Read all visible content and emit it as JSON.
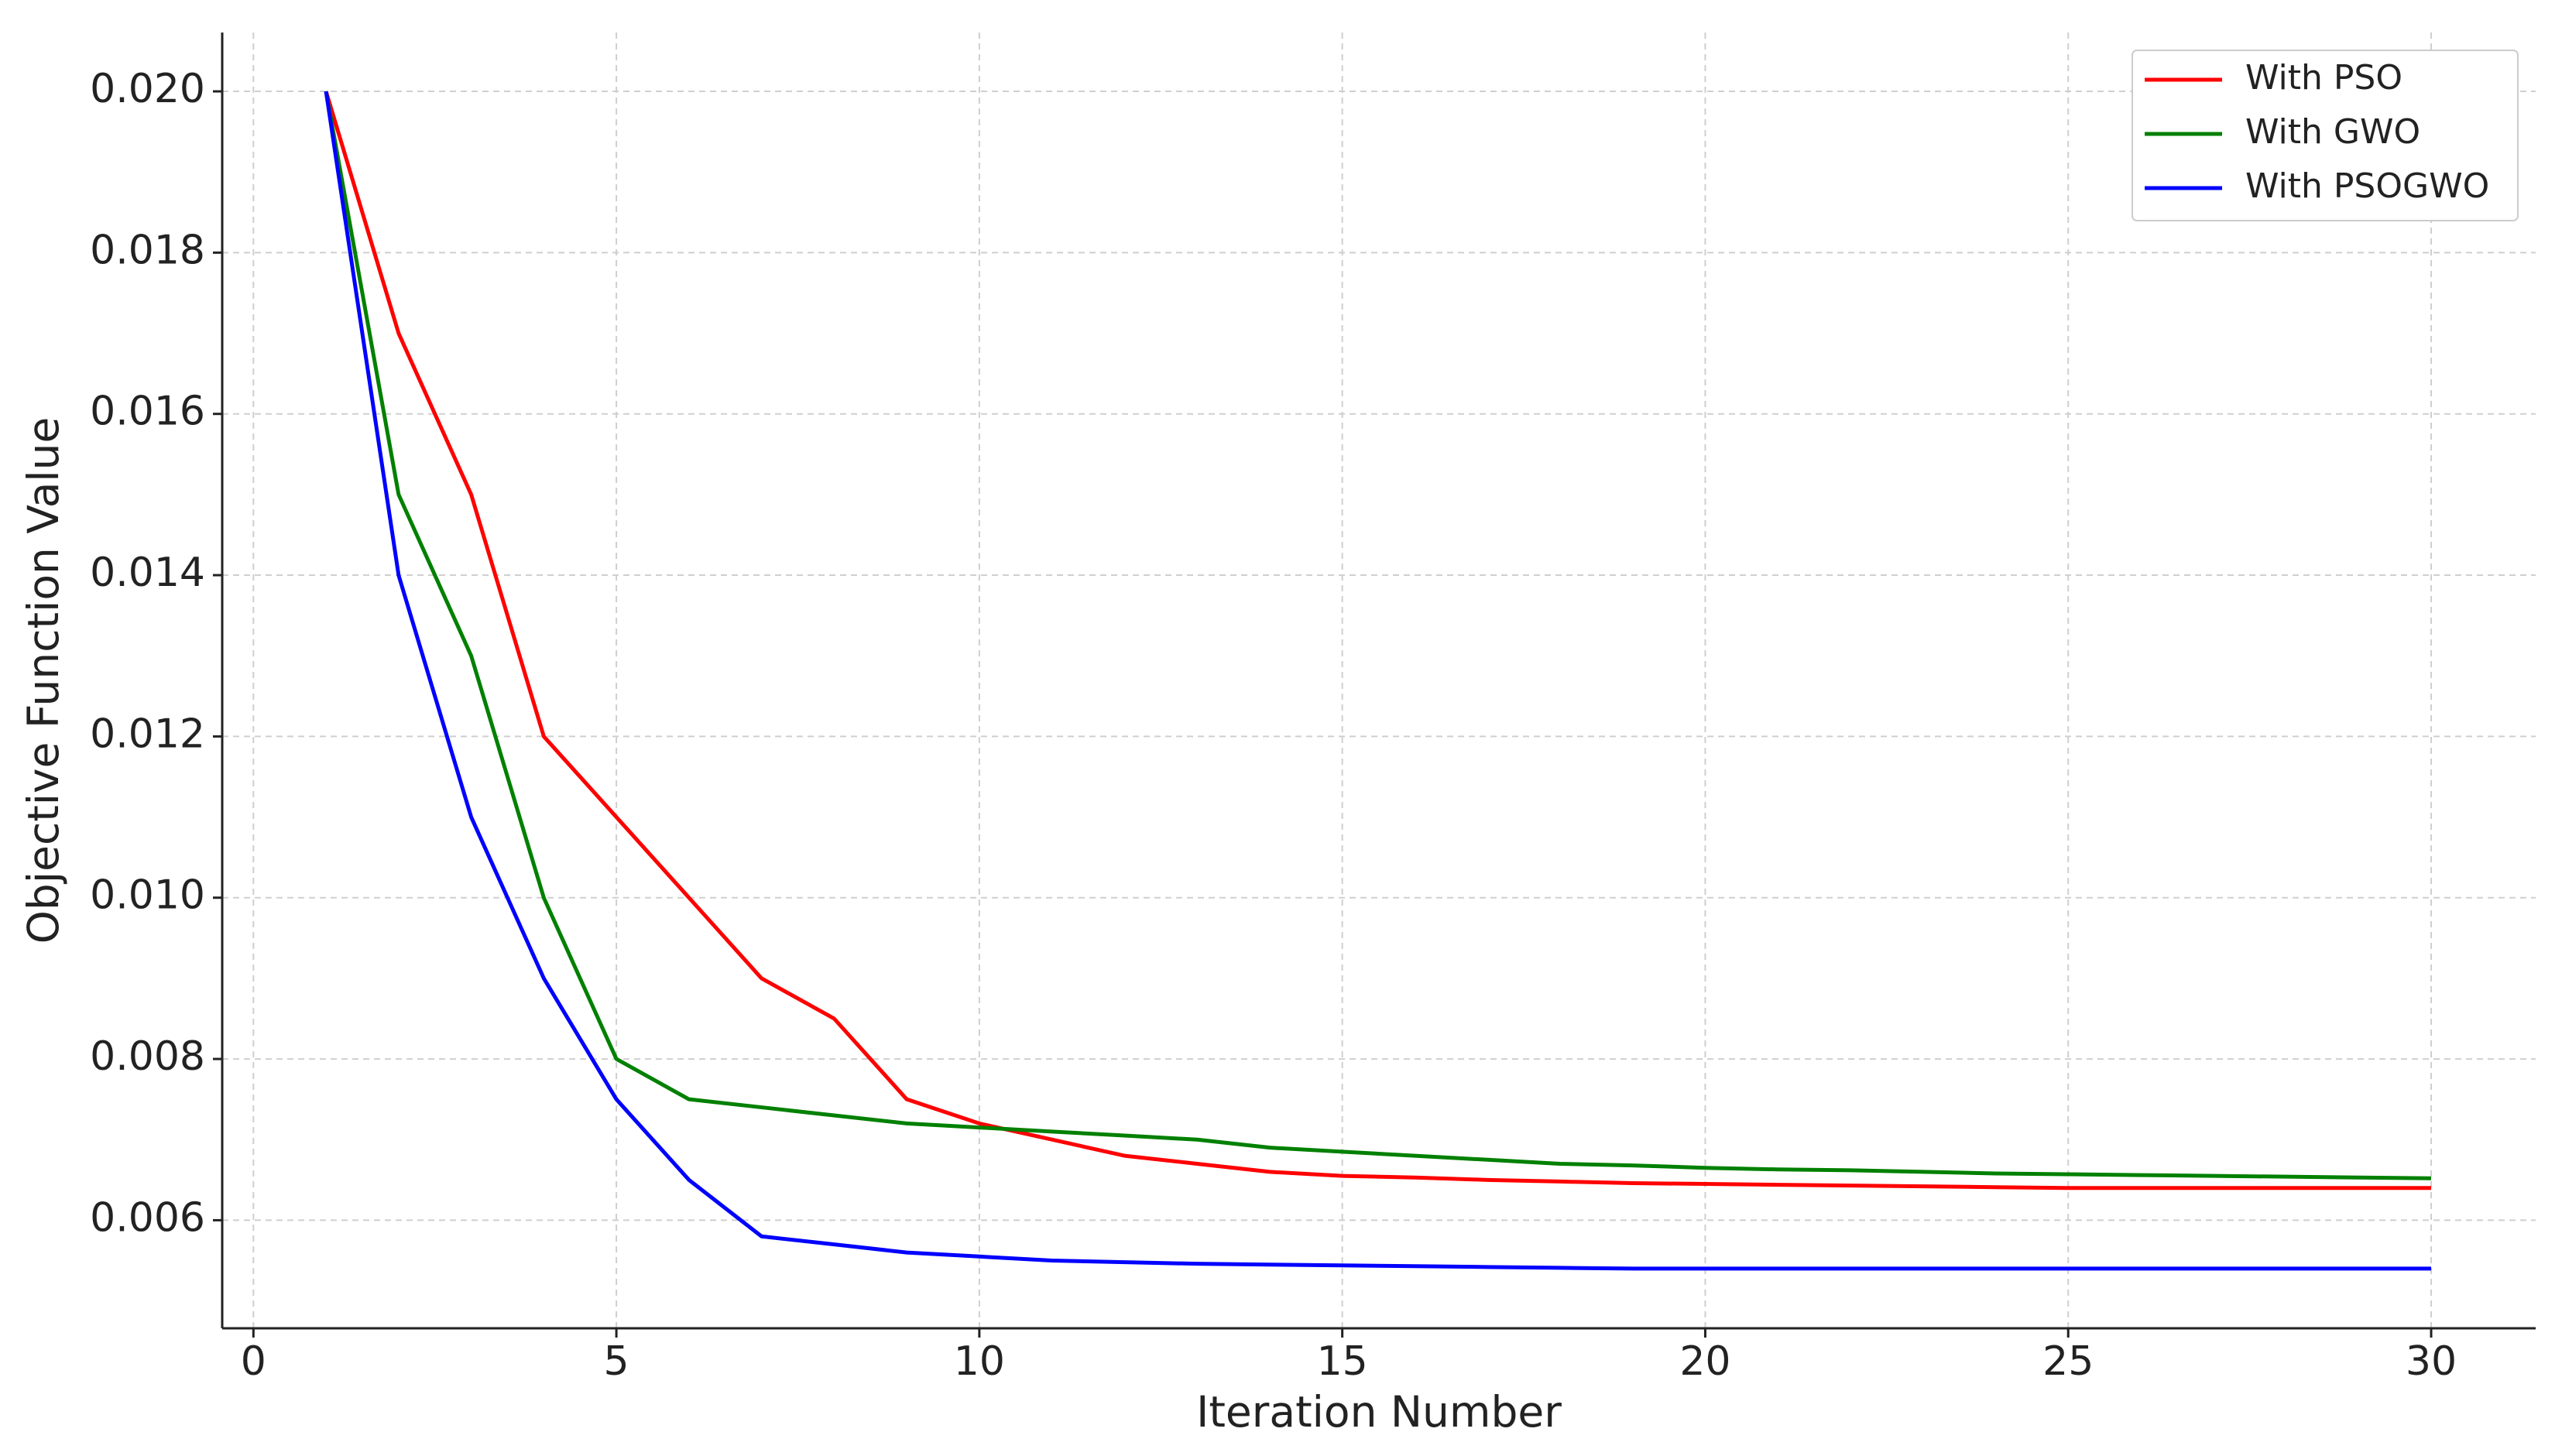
{
  "chart_data": {
    "type": "line",
    "x_label": "Iteration Number",
    "y_label": "Objective Function Value",
    "x": [
      1,
      2,
      3,
      4,
      5,
      6,
      7,
      8,
      9,
      10,
      11,
      12,
      13,
      14,
      15,
      16,
      17,
      18,
      19,
      20,
      21,
      22,
      23,
      24,
      25,
      26,
      27,
      28,
      29,
      30
    ],
    "series": [
      {
        "name": "With PSO",
        "color": "#ff0000",
        "values": [
          0.02,
          0.017,
          0.015,
          0.012,
          0.011,
          0.01,
          0.009,
          0.0085,
          0.0075,
          0.0072,
          0.007,
          0.0068,
          0.0067,
          0.0066,
          0.00655,
          0.00653,
          0.0065,
          0.00648,
          0.00646,
          0.00645,
          0.00644,
          0.00643,
          0.00642,
          0.00641,
          0.0064,
          0.0064,
          0.0064,
          0.0064,
          0.0064,
          0.0064
        ]
      },
      {
        "name": "With GWO",
        "color": "#008000",
        "values": [
          0.02,
          0.015,
          0.013,
          0.01,
          0.008,
          0.0075,
          0.0074,
          0.0073,
          0.0072,
          0.00715,
          0.0071,
          0.00705,
          0.007,
          0.0069,
          0.00685,
          0.0068,
          0.00675,
          0.0067,
          0.00668,
          0.00665,
          0.00663,
          0.00662,
          0.0066,
          0.00658,
          0.00657,
          0.00656,
          0.00655,
          0.00654,
          0.00653,
          0.00652
        ]
      },
      {
        "name": "With PSOGWO",
        "color": "#0000ff",
        "values": [
          0.02,
          0.014,
          0.011,
          0.009,
          0.0075,
          0.0065,
          0.0058,
          0.0057,
          0.0056,
          0.00555,
          0.0055,
          0.00548,
          0.00546,
          0.00545,
          0.00544,
          0.00543,
          0.00542,
          0.00541,
          0.0054,
          0.0054,
          0.0054,
          0.0054,
          0.0054,
          0.0054,
          0.0054,
          0.0054,
          0.0054,
          0.0054,
          0.0054,
          0.0054
        ]
      }
    ],
    "xlim": [
      -0.43,
      31.44
    ],
    "ylim": [
      0.00466,
      0.02073
    ],
    "xticks": [
      0,
      5,
      10,
      15,
      20,
      25,
      30
    ],
    "yticks": [
      {
        "value": 0.006,
        "label": "0.006"
      },
      {
        "value": 0.008,
        "label": "0.008"
      },
      {
        "value": 0.01,
        "label": "0.010"
      },
      {
        "value": 0.012,
        "label": "0.012"
      },
      {
        "value": 0.014,
        "label": "0.014"
      },
      {
        "value": 0.016,
        "label": "0.016"
      },
      {
        "value": 0.018,
        "label": "0.018"
      },
      {
        "value": 0.02,
        "label": "0.020"
      }
    ],
    "grid": true,
    "legend": "upper right"
  }
}
